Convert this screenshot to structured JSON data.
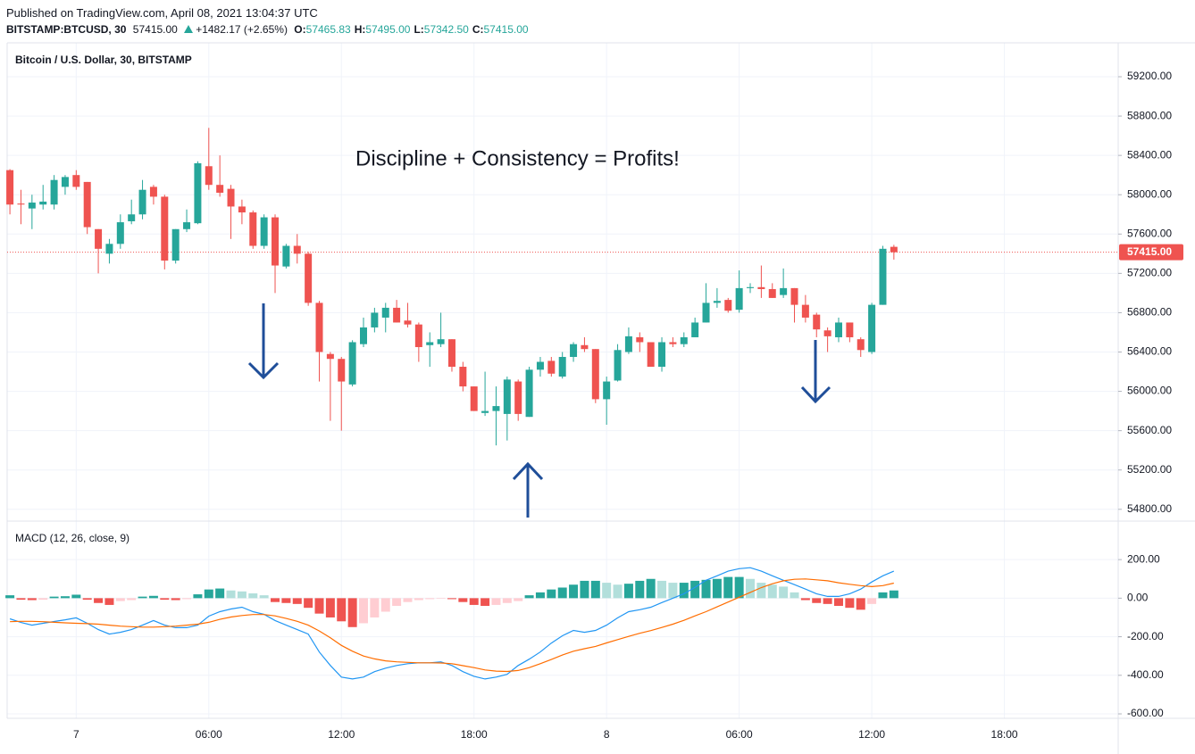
{
  "header": {
    "published": "Published on TradingView.com, April 08, 2021 13:04:37 UTC",
    "symbol": "BITSTAMP:BTCUSD, 30",
    "last": "57415.00",
    "change": "+1482.17 (+2.65%)",
    "ohlc": [
      {
        "label": "O:",
        "value": "57465.83"
      },
      {
        "label": "H:",
        "value": "57495.00"
      },
      {
        "label": "L:",
        "value": "57342.50"
      },
      {
        "label": "C:",
        "value": "57415.00"
      }
    ]
  },
  "chart_data": {
    "type": "candlestick",
    "title": "Bitcoin / U.S. Dollar, 30, BITSTAMP",
    "annotation": "Discipline + Consistency = Profits!",
    "up_color": "#26a69a",
    "down_color": "#ef5350",
    "x": [
      0,
      1,
      2,
      3,
      4,
      5,
      6,
      7,
      8,
      9,
      10,
      11,
      12,
      13,
      14,
      15,
      16,
      17,
      18,
      19,
      20,
      21,
      22,
      23,
      24,
      25,
      26,
      27,
      28,
      29,
      30,
      31,
      32,
      33,
      34,
      35,
      36,
      37,
      38,
      39,
      40,
      41,
      42,
      43,
      44,
      45,
      46,
      47,
      48,
      49,
      50,
      51,
      52,
      53,
      54,
      55,
      56,
      57,
      58,
      59,
      60,
      61,
      62,
      63,
      64,
      65,
      66,
      67,
      68,
      69,
      70,
      71,
      72,
      73,
      74,
      75,
      76,
      77,
      78,
      79,
      80
    ],
    "open": [
      58250,
      57910,
      57860,
      57900,
      57900,
      58080,
      58200,
      58130,
      57650,
      57400,
      57500,
      57730,
      57800,
      58080,
      57980,
      57330,
      57650,
      57710,
      58290,
      58100,
      58060,
      57880,
      57820,
      57480,
      57770,
      57270,
      57480,
      57400,
      56900,
      56380,
      56330,
      56070,
      56480,
      56650,
      56750,
      56850,
      56720,
      56680,
      56470,
      56480,
      56530,
      56250,
      56050,
      55780,
      55800,
      55770,
      56100,
      55740,
      56220,
      56310,
      56150,
      56350,
      56470,
      56430,
      55920,
      56110,
      56400,
      56550,
      56500,
      56250,
      56500,
      56480,
      56550,
      56700,
      56900,
      56930,
      56830,
      57050,
      57060,
      57040,
      56980,
      57050,
      56880,
      56780,
      56620,
      56550,
      56700,
      56530,
      56400,
      56880,
      57470
    ],
    "high": [
      58260,
      58050,
      58000,
      58100,
      58200,
      58200,
      58250,
      58130,
      57650,
      57550,
      57800,
      57950,
      58150,
      58100,
      58000,
      57650,
      57850,
      58340,
      58680,
      58400,
      58100,
      57950,
      57840,
      57800,
      57800,
      57500,
      57600,
      57420,
      56920,
      56400,
      56350,
      56520,
      56750,
      56850,
      56900,
      56930,
      56900,
      56700,
      56600,
      56800,
      56530,
      56300,
      56050,
      56200,
      56050,
      56150,
      56120,
      56250,
      56350,
      56350,
      56400,
      56500,
      56550,
      56430,
      56150,
      56480,
      56650,
      56600,
      56500,
      56550,
      56550,
      56600,
      56750,
      57100,
      57050,
      56950,
      57230,
      57100,
      57280,
      57100,
      57250,
      57050,
      56980,
      56800,
      56650,
      56750,
      56700,
      56550,
      56900,
      57480,
      57490
    ],
    "low": [
      57800,
      57700,
      57650,
      57850,
      57850,
      58000,
      58050,
      57600,
      57200,
      57300,
      57450,
      57700,
      57750,
      57900,
      57240,
      57300,
      57620,
      57700,
      58050,
      57980,
      57550,
      57700,
      57450,
      57450,
      57000,
      57250,
      57300,
      56870,
      56100,
      55700,
      55600,
      56050,
      56450,
      56600,
      56600,
      56700,
      56650,
      56300,
      56250,
      56450,
      56200,
      56000,
      55800,
      55750,
      55450,
      55500,
      55700,
      55740,
      56150,
      56150,
      56130,
      56300,
      56400,
      55880,
      55660,
      56100,
      56380,
      56400,
      56250,
      56200,
      56450,
      56450,
      56550,
      56700,
      56850,
      56800,
      56800,
      57000,
      56950,
      56950,
      56950,
      56700,
      56700,
      56550,
      56400,
      56500,
      56500,
      56350,
      56380,
      56880,
      57340
    ],
    "close": [
      57900,
      57900,
      57920,
      57930,
      58150,
      58180,
      58080,
      57670,
      57450,
      57500,
      57720,
      57800,
      58050,
      57980,
      57330,
      57650,
      57720,
      58320,
      58100,
      58020,
      57880,
      57820,
      57480,
      57770,
      57280,
      57480,
      57400,
      56900,
      56400,
      56330,
      56100,
      56500,
      56650,
      56800,
      56850,
      56700,
      56680,
      56450,
      56500,
      56530,
      56250,
      56050,
      55800,
      55800,
      55850,
      56120,
      55770,
      56220,
      56300,
      56180,
      56350,
      56480,
      56430,
      55920,
      56100,
      56420,
      56560,
      56500,
      56250,
      56500,
      56480,
      56550,
      56700,
      56900,
      56920,
      56820,
      57050,
      57060,
      57040,
      56950,
      57050,
      56880,
      56750,
      56630,
      56560,
      56700,
      56550,
      56420,
      56880,
      57450,
      57415
    ],
    "xlim": [
      -0.25,
      100.3
    ],
    "ylim": [
      54680,
      59545
    ],
    "yticks": [
      {
        "value": 54800,
        "label": "54800.00"
      },
      {
        "value": 55200,
        "label": "55200.00"
      },
      {
        "value": 55600,
        "label": "55600.00"
      },
      {
        "value": 56000,
        "label": "56000.00"
      },
      {
        "value": 56400,
        "label": "56400.00"
      },
      {
        "value": 56800,
        "label": "56800.00"
      },
      {
        "value": 57200,
        "label": "57200.00"
      },
      {
        "value": 57600,
        "label": "57600.00"
      },
      {
        "value": 58000,
        "label": "58000.00"
      },
      {
        "value": 58400,
        "label": "58400.00"
      },
      {
        "value": 58800,
        "label": "58800.00"
      },
      {
        "value": 59200,
        "label": "59200.00"
      }
    ],
    "xticks": [
      {
        "value": 6,
        "label": "7"
      },
      {
        "value": 18,
        "label": "06:00"
      },
      {
        "value": 30,
        "label": "12:00"
      },
      {
        "value": 42,
        "label": "18:00"
      },
      {
        "value": 54,
        "label": "8"
      },
      {
        "value": 66,
        "label": "06:00"
      },
      {
        "value": 78,
        "label": "12:00"
      },
      {
        "value": 90,
        "label": "18:00"
      }
    ],
    "grid": true,
    "last_price": {
      "value": 57415,
      "label": "57415.00",
      "color": "#ef5350"
    },
    "indicator": {
      "type": "macd",
      "title": "MACD (12, 26, close, 9)",
      "ylim": [
        -623,
        395
      ],
      "yticks": [
        {
          "value": 200,
          "label": "200.00"
        },
        {
          "value": 0,
          "label": "0.00"
        },
        {
          "value": -200,
          "label": "-200.00"
        },
        {
          "value": -400,
          "label": "-400.00"
        },
        {
          "value": -600,
          "label": "-600.00"
        }
      ],
      "histogram": {
        "colors": {
          "up_strong": "#26a69a",
          "up_weak": "#b2dfdb",
          "down_strong": "#ef5350",
          "down_weak": "#ffcdd2"
        },
        "values": [
          15,
          -8,
          -10,
          -8,
          8,
          10,
          18,
          -8,
          -25,
          -35,
          -15,
          -10,
          8,
          12,
          -8,
          -10,
          -5,
          20,
          45,
          50,
          40,
          35,
          25,
          15,
          -20,
          -25,
          -30,
          -50,
          -80,
          -100,
          -120,
          -150,
          -130,
          -100,
          -70,
          -40,
          -20,
          -10,
          -5,
          -3,
          -5,
          -20,
          -35,
          -40,
          -35,
          -25,
          -15,
          15,
          30,
          45,
          55,
          70,
          90,
          90,
          80,
          70,
          75,
          90,
          100,
          90,
          80,
          80,
          90,
          95,
          100,
          110,
          110,
          100,
          80,
          70,
          60,
          30,
          -10,
          -25,
          -30,
          -40,
          -50,
          -60,
          -30,
          30,
          40
        ]
      },
      "series": [
        {
          "color": "#2196f3",
          "values": [
            -107,
            -126,
            -140,
            -130,
            -121,
            -112,
            -102,
            -130,
            -163,
            -186,
            -177,
            -163,
            -140,
            -116,
            -140,
            -153,
            -153,
            -140,
            -93,
            -70,
            -56,
            -47,
            -70,
            -84,
            -116,
            -140,
            -163,
            -186,
            -279,
            -349,
            -409,
            -419,
            -409,
            -381,
            -363,
            -349,
            -340,
            -335,
            -335,
            -330,
            -349,
            -381,
            -405,
            -419,
            -409,
            -395,
            -349,
            -316,
            -279,
            -233,
            -195,
            -167,
            -177,
            -167,
            -140,
            -102,
            -70,
            -60,
            -47,
            -23,
            0,
            23,
            56,
            93,
            116,
            140,
            153,
            158,
            140,
            116,
            93,
            70,
            47,
            23,
            9,
            9,
            23,
            47,
            84,
            116,
            140
          ]
        },
        {
          "color": "#ff6d00",
          "values": [
            -122,
            -120,
            -120,
            -122,
            -125,
            -128,
            -130,
            -132,
            -135,
            -140,
            -145,
            -148,
            -150,
            -150,
            -148,
            -145,
            -140,
            -135,
            -125,
            -110,
            -98,
            -90,
            -85,
            -85,
            -92,
            -105,
            -120,
            -140,
            -170,
            -205,
            -245,
            -275,
            -300,
            -315,
            -325,
            -330,
            -333,
            -335,
            -335,
            -336,
            -340,
            -350,
            -360,
            -372,
            -378,
            -380,
            -375,
            -360,
            -340,
            -318,
            -295,
            -275,
            -262,
            -250,
            -232,
            -215,
            -198,
            -182,
            -168,
            -152,
            -135,
            -115,
            -92,
            -70,
            -45,
            -20,
            5,
            30,
            55,
            75,
            90,
            98,
            100,
            95,
            90,
            80,
            72,
            65,
            60,
            65,
            78
          ]
        }
      ]
    }
  }
}
